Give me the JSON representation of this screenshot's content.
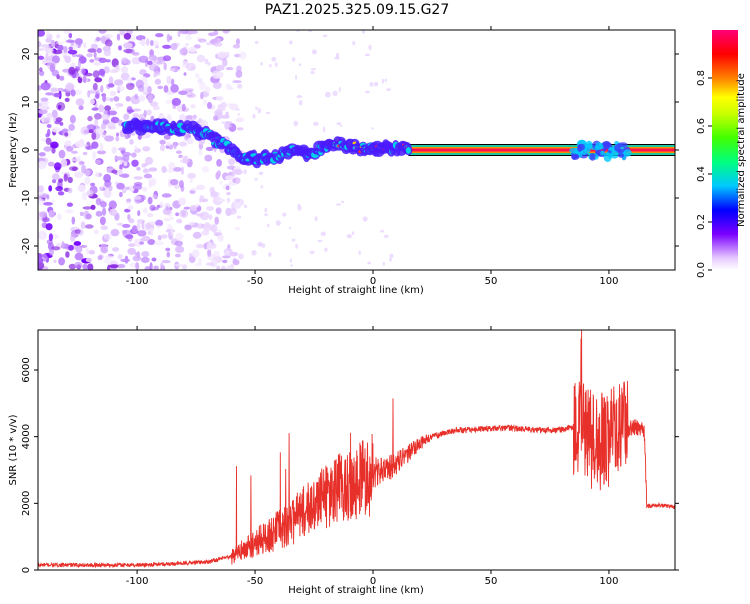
{
  "figure": {
    "title": "PAZ1.2025.325.09.15.G27"
  },
  "chart_data": [
    {
      "type": "heatmap",
      "name": "spectrogram",
      "xlabel": "Height of straight line (km)",
      "ylabel": "Frequency (Hz)",
      "xlim": [
        -142,
        128
      ],
      "ylim": [
        -25,
        25
      ],
      "xticks": [
        -100,
        -50,
        0,
        50,
        100
      ],
      "yticks": [
        -20,
        -10,
        0,
        10,
        20
      ],
      "ridge": {
        "x": [
          -140,
          -120,
          -105,
          -95,
          -85,
          -75,
          -68,
          -60,
          -55,
          -50,
          -45,
          -40,
          -35,
          -30,
          -25,
          -20,
          -15,
          -10,
          -5,
          0,
          5,
          10,
          20,
          40,
          60,
          80,
          100,
          128
        ],
        "y": [
          5,
          5,
          4.8,
          5,
          4.5,
          4,
          2.5,
          0,
          -1.5,
          -2,
          -1.8,
          -1.5,
          0,
          -0.8,
          -0.5,
          0.5,
          1.5,
          1,
          0.5,
          0,
          0.3,
          0.2,
          0,
          0,
          0,
          0,
          0,
          0
        ]
      },
      "noise_region_x": [
        -142,
        -80
      ],
      "colorbar": {
        "label": "Normalized spectral amplitude",
        "ticks": [
          0.0,
          0.2,
          0.4,
          0.6,
          0.8
        ],
        "tick_labels": [
          "0.0",
          "0.2",
          "0.4",
          "0.6",
          "0.8"
        ],
        "range": [
          0,
          1
        ]
      }
    },
    {
      "type": "line",
      "name": "snr",
      "xlabel": "Height of straight line (km)",
      "ylabel": "SNR (10 * v/v)",
      "xlim": [
        -142,
        128
      ],
      "ylim": [
        0,
        7200
      ],
      "xticks": [
        -100,
        -50,
        0,
        50,
        100
      ],
      "yticks": [
        0,
        2000,
        4000,
        6000
      ],
      "series": [
        {
          "name": "SNR",
          "color": "#e8302a",
          "x": [
            -142,
            -100,
            -80,
            -70,
            -60,
            -55,
            -50,
            -45,
            -40,
            -35,
            -30,
            -25,
            -20,
            -15,
            -10,
            -5,
            0,
            5,
            10,
            15,
            20,
            25,
            30,
            35,
            40,
            50,
            60,
            70,
            80,
            85,
            88,
            90,
            95,
            100,
            105,
            110,
            115,
            116,
            120,
            128
          ],
          "y": [
            150,
            150,
            200,
            250,
            400,
            600,
            800,
            1000,
            1200,
            1400,
            1700,
            2000,
            2200,
            2400,
            2600,
            2800,
            2900,
            3000,
            3200,
            3500,
            3800,
            4000,
            4100,
            4200,
            4200,
            4250,
            4250,
            4200,
            4200,
            4300,
            4500,
            4000,
            3800,
            4000,
            4100,
            4300,
            4200,
            1900,
            1950,
            1900
          ]
        }
      ]
    }
  ]
}
